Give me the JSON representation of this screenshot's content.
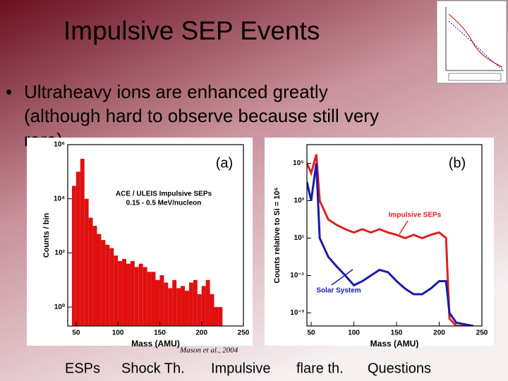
{
  "title": "Impulsive SEP Events",
  "bullet": {
    "lines": [
      "Ultraheavy ions are enhanced greatly",
      "(although hard to observe because still very",
      "rare)"
    ]
  },
  "figures": [
    {
      "type": "histogram",
      "panel_label": "(a)",
      "annotations": [
        "ACE / ULEIS Impulsive SEPs",
        "0.15 - 0.5 MeV/nucleon"
      ],
      "x_label": "Mass (AMU)",
      "y_label": "Counts / bin",
      "color": "#e01010",
      "log_y": true,
      "bins": [
        45,
        50,
        55,
        60,
        65,
        70,
        75,
        80,
        85,
        90,
        95,
        100,
        105,
        110,
        115,
        120,
        125,
        130,
        135,
        140,
        145,
        150,
        155,
        160,
        165,
        170,
        175,
        180,
        185,
        190,
        195,
        200,
        205,
        210,
        215,
        220,
        225
      ],
      "counts": [
        30000,
        100000,
        300000,
        10000,
        2000,
        1000,
        500,
        300,
        200,
        150,
        80,
        50,
        60,
        40,
        50,
        30,
        40,
        30,
        20,
        20,
        10,
        15,
        8,
        5,
        10,
        5,
        6,
        4,
        8,
        10,
        3,
        6,
        10,
        3,
        1,
        1
      ],
      "xlim": [
        40,
        250
      ],
      "xticks": [
        50,
        100,
        150,
        200,
        250
      ],
      "ylim": [
        0.2,
        1000000
      ],
      "yticks": [
        {
          "value": 1,
          "label": "10⁰"
        },
        {
          "value": 100,
          "label": "10²"
        },
        {
          "value": 10000,
          "label": "10⁴"
        },
        {
          "value": 1000000,
          "label": "10⁶"
        }
      ]
    },
    {
      "type": "line",
      "panel_label": "(b)",
      "x_label": "Mass (AMU)",
      "y_label": "Counts relative to Si = 10⁶",
      "log_y": true,
      "x": [
        45,
        50,
        56,
        60,
        70,
        80,
        90,
        100,
        110,
        120,
        130,
        140,
        150,
        160,
        170,
        180,
        190,
        200,
        208,
        212,
        220,
        240
      ],
      "series": [
        {
          "name": "Impulsive SEPs",
          "color": "#e02020",
          "values": [
            100000,
            30000,
            300000,
            1000,
            100,
            50,
            30,
            20,
            30,
            20,
            30,
            20,
            15,
            10,
            15,
            10,
            15,
            20,
            10,
            0.0005,
            0.0002,
            0.0002
          ]
        },
        {
          "name": "Solar System",
          "color": "#1a1aa8",
          "values": [
            10000,
            1000,
            100000,
            10,
            1,
            0.3,
            0.1,
            0.03,
            0.05,
            0.1,
            0.2,
            0.15,
            0.05,
            0.02,
            0.01,
            0.01,
            0.02,
            0.05,
            0.05,
            0.001,
            0.0003,
            0.0002
          ]
        }
      ],
      "xlim": [
        45,
        250
      ],
      "xticks": [
        50,
        100,
        150,
        200,
        250
      ],
      "ylim": [
        0.0002,
        1000000
      ],
      "yticks": [
        {
          "value": 0.001,
          "label": "10⁻³"
        },
        {
          "value": 0.1,
          "label": "10⁻¹"
        },
        {
          "value": 10,
          "label": "10¹"
        },
        {
          "value": 1000,
          "label": "10³"
        },
        {
          "value": 100000,
          "label": "10⁵"
        }
      ]
    }
  ],
  "citation": "Mason et al., 2004",
  "nav": [
    "ESPs",
    "Shock Th.",
    "Impulsive",
    "flare th.",
    "Questions"
  ]
}
